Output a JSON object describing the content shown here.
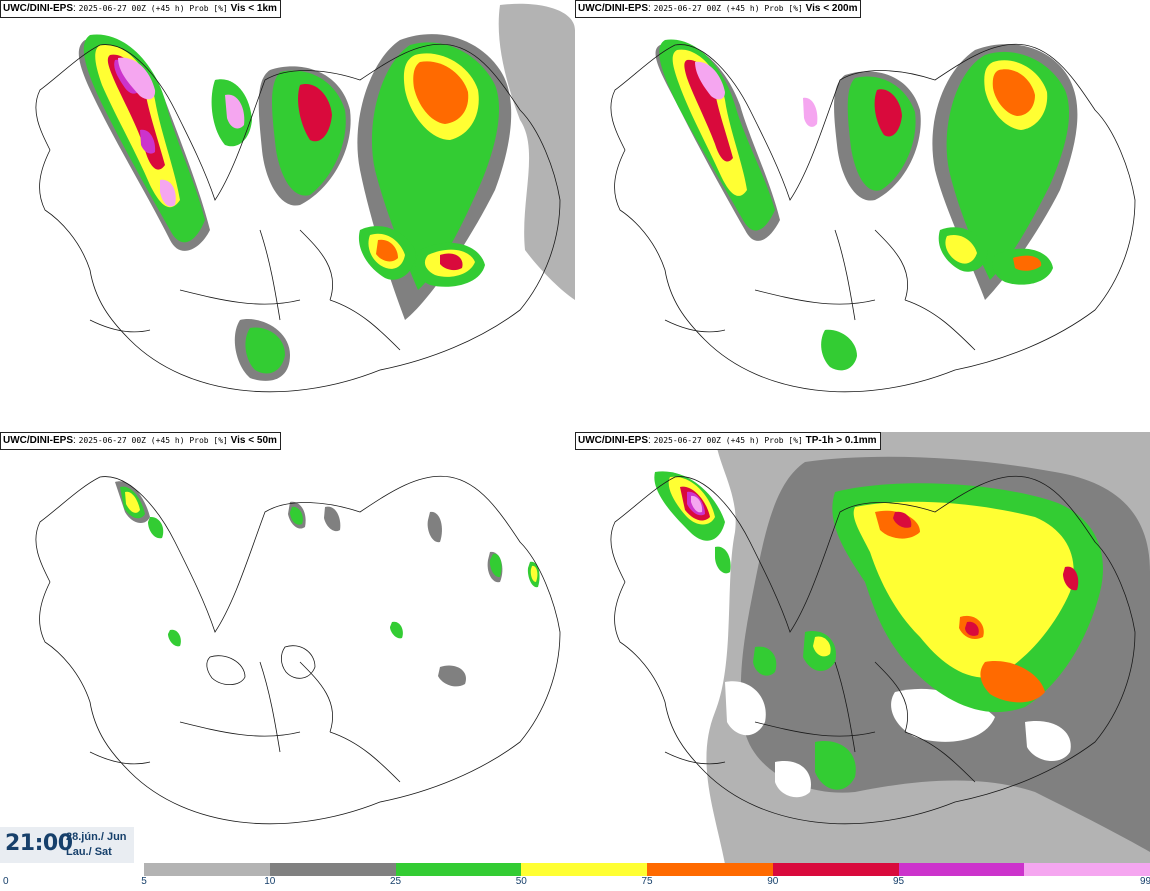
{
  "panels": [
    {
      "model": "UWC/DINI-EPS",
      "run": "2025-06-27 00Z (+45 h) Prob [%]",
      "field": "Vis < 1km"
    },
    {
      "model": "UWC/DINI-EPS",
      "run": "2025-06-27 00Z (+45 h) Prob [%]",
      "field": "Vis < 200m"
    },
    {
      "model": "UWC/DINI-EPS",
      "run": "2025-06-27 00Z (+45 h) Prob [%]",
      "field": "Vis < 50m"
    },
    {
      "model": "UWC/DINI-EPS",
      "run": "2025-06-27 00Z (+45 h) Prob [%]",
      "field": "TP-1h > 0.1mm"
    }
  ],
  "valid_time": {
    "time": "21:00",
    "date_line1": "28.jún./ Jun",
    "date_line2": "Lau./ Sat"
  },
  "colorbar": {
    "colors": [
      "#b3b3b3",
      "#808080",
      "#33cc33",
      "#ffff33",
      "#ff6a00",
      "#d90a3c",
      "#cc33cc",
      "#f5a6f0"
    ],
    "ticks": [
      "0",
      "5",
      "10",
      "25",
      "50",
      "75",
      "90",
      "95",
      "99"
    ]
  },
  "colors": {
    "outline": "#1a1a1a",
    "background": "#ffffff",
    "label": "#17406b"
  }
}
